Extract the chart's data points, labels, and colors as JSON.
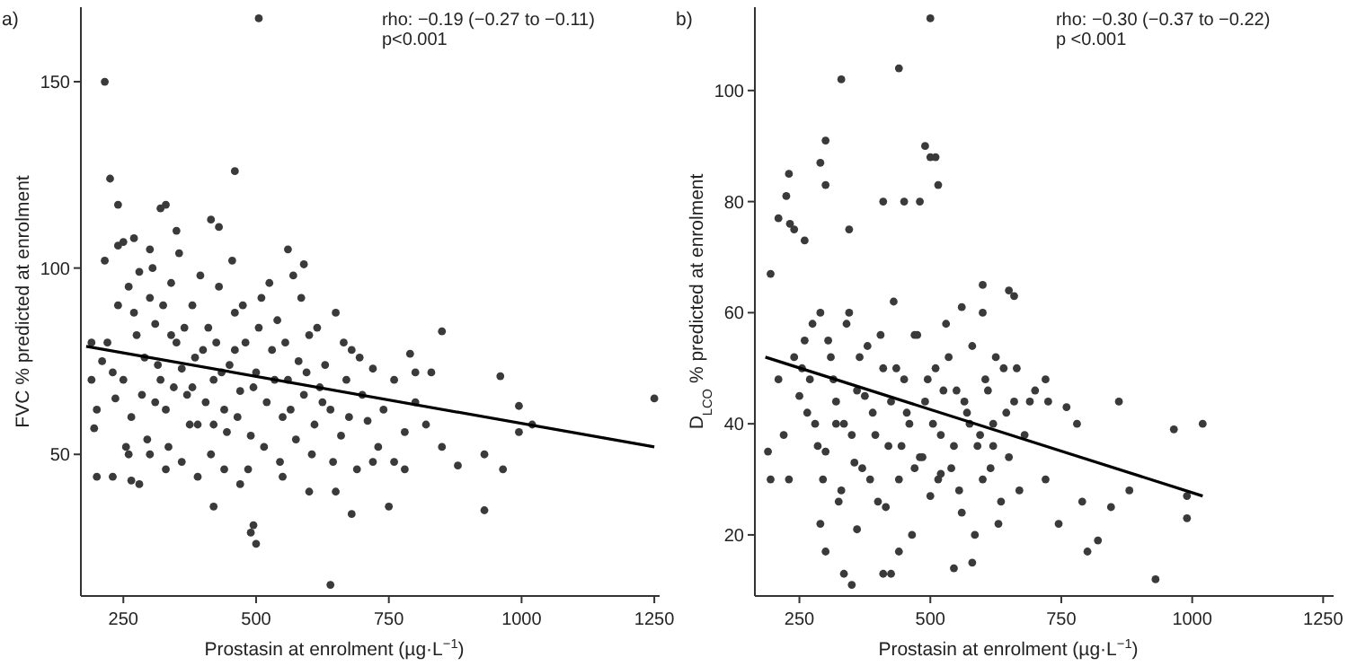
{
  "chart_data": [
    {
      "type": "scatter",
      "xlabel": "Prostasin at enrolment (µg·L$^{−1}$)",
      "ylabel": "FVC % predicted at enrolment",
      "annotations": [
        "a)",
        "rho: −0.19 (−0.27 to −0.11)",
        "p<0.001"
      ],
      "xlim": [
        170,
        1260
      ],
      "ylim": [
        12,
        170
      ],
      "xticks": [
        250,
        500,
        750,
        1000,
        1250
      ],
      "yticks": [
        50,
        100,
        150
      ],
      "grid": false,
      "marker": "circle",
      "series": [
        {
          "color": "#3a3a3a",
          "x": [
            505,
            215,
            225,
            460,
            240,
            330,
            320,
            415,
            430,
            215,
            240,
            250,
            190,
            195,
            200,
            230,
            265,
            280,
            1250,
            930,
            965,
            930,
            880,
            850,
            1020,
            995,
            995,
            960,
            850,
            800,
            790,
            830,
            640,
            500,
            490,
            495,
            420,
            600,
            650,
            680,
            750,
            690,
            720,
            760,
            780,
            260,
            270,
            280,
            290,
            300,
            310,
            320,
            330,
            340,
            350,
            360,
            370,
            380,
            390,
            400,
            410,
            420,
            430,
            440,
            450,
            460,
            470,
            480,
            490,
            500,
            510,
            520,
            530,
            540,
            550,
            560,
            570,
            580,
            590,
            600,
            610,
            620,
            630,
            640,
            650,
            660,
            670,
            680,
            700,
            710,
            720,
            740,
            760,
            780,
            800,
            820,
            250,
            265,
            275,
            285,
            295,
            305,
            315,
            325,
            335,
            345,
            355,
            365,
            375,
            385,
            395,
            405,
            415,
            425,
            435,
            445,
            455,
            465,
            475,
            485,
            495,
            505,
            515,
            525,
            535,
            545,
            555,
            565,
            575,
            585,
            595,
            605,
            615,
            625,
            645,
            665,
            675,
            695,
            730,
            590,
            560,
            350,
            270,
            300,
            220,
            230,
            240,
            235,
            210,
            200,
            190,
            360,
            440,
            470,
            550,
            330,
            300,
            390,
            260,
            255,
            420,
            460,
            380,
            340,
            310
          ],
          "values": [
            167,
            150,
            124,
            126,
            117,
            117,
            116,
            113,
            111,
            102,
            106,
            107,
            80,
            57,
            44,
            44,
            43,
            42,
            65,
            50,
            46,
            35,
            47,
            52,
            58,
            56,
            63,
            71,
            83,
            72,
            77,
            72,
            15,
            26,
            29,
            31,
            36,
            40,
            40,
            34,
            36,
            46,
            48,
            48,
            46,
            95,
            88,
            99,
            76,
            92,
            85,
            70,
            62,
            96,
            80,
            73,
            66,
            90,
            58,
            78,
            84,
            70,
            95,
            62,
            74,
            88,
            67,
            80,
            55,
            72,
            92,
            64,
            78,
            86,
            60,
            70,
            98,
            75,
            66,
            82,
            58,
            68,
            74,
            62,
            88,
            55,
            70,
            78,
            66,
            59,
            73,
            62,
            70,
            56,
            64,
            58,
            70,
            60,
            82,
            66,
            54,
            100,
            74,
            90,
            52,
            68,
            104,
            84,
            58,
            76,
            98,
            64,
            50,
            80,
            72,
            56,
            102,
            60,
            90,
            46,
            68,
            84,
            52,
            96,
            70,
            48,
            80,
            62,
            54,
            92,
            72,
            50,
            84,
            64,
            48,
            80,
            60,
            76,
            52,
            101,
            105,
            110,
            108,
            105,
            80,
            72,
            90,
            65,
            75,
            62,
            70,
            48,
            46,
            42,
            44,
            46,
            50,
            44,
            50,
            52,
            58,
            78,
            68,
            82,
            64
          ]
        },
        {
          "type": "line",
          "marker": "none",
          "color": "#000000",
          "x": [
            180,
            1250
          ],
          "values": [
            79,
            52
          ]
        }
      ]
    },
    {
      "type": "scatter",
      "xlabel": "Prostasin at enrolment (µg·L$^{−1}$)",
      "ylabel": "D$_{LCO}$ % predicted at enrolment",
      "annotations": [
        "b)",
        "rho: −0.30 (−0.37 to −0.22)",
        "p <0.001"
      ],
      "xlim": [
        165,
        1270
      ],
      "ylim": [
        9,
        115
      ],
      "xticks": [
        250,
        500,
        750,
        1000,
        1250
      ],
      "yticks": [
        20,
        40,
        60,
        80,
        100
      ],
      "grid": false,
      "marker": "circle",
      "series": [
        {
          "color": "#3a3a3a",
          "x": [
            500,
            440,
            330,
            490,
            300,
            290,
            300,
            500,
            510,
            515,
            450,
            410,
            480,
            230,
            210,
            225,
            232,
            240,
            195,
            260,
            345,
            650,
            600,
            600,
            560,
            660,
            1020,
            965,
            990,
            990,
            930,
            880,
            860,
            845,
            820,
            800,
            790,
            780,
            760,
            745,
            720,
            725,
            720,
            350,
            335,
            410,
            425,
            545,
            580,
            440,
            190,
            195,
            230,
            300,
            290,
            250,
            260,
            270,
            280,
            290,
            300,
            310,
            320,
            330,
            340,
            350,
            360,
            370,
            380,
            390,
            400,
            410,
            420,
            430,
            440,
            450,
            460,
            470,
            480,
            490,
            500,
            510,
            520,
            530,
            540,
            550,
            560,
            570,
            580,
            590,
            600,
            610,
            620,
            630,
            640,
            650,
            660,
            670,
            680,
            700,
            255,
            265,
            275,
            285,
            295,
            305,
            315,
            325,
            335,
            345,
            355,
            365,
            375,
            385,
            395,
            405,
            415,
            425,
            435,
            445,
            455,
            465,
            475,
            485,
            495,
            505,
            515,
            525,
            535,
            545,
            555,
            565,
            575,
            585,
            595,
            605,
            615,
            625,
            635,
            645,
            665,
            690,
            220,
            240,
            210,
            320,
            360,
            470,
            520,
            620
          ],
          "values": [
            113,
            104,
            102,
            90,
            91,
            87,
            83,
            88,
            88,
            83,
            80,
            80,
            80,
            85,
            77,
            81,
            76,
            75,
            67,
            73,
            75,
            64,
            65,
            60,
            61,
            63,
            40,
            39,
            27,
            23,
            12,
            28,
            44,
            25,
            19,
            17,
            26,
            40,
            43,
            22,
            30,
            44,
            48,
            11,
            13,
            13,
            13,
            14,
            15,
            17,
            35,
            30,
            30,
            17,
            22,
            45,
            55,
            48,
            40,
            60,
            35,
            52,
            44,
            28,
            58,
            38,
            46,
            32,
            54,
            42,
            26,
            50,
            36,
            62,
            30,
            48,
            40,
            56,
            34,
            44,
            27,
            50,
            38,
            58,
            32,
            46,
            24,
            42,
            54,
            36,
            30,
            46,
            40,
            22,
            50,
            34,
            44,
            28,
            38,
            46,
            50,
            42,
            58,
            36,
            30,
            55,
            48,
            26,
            40,
            60,
            33,
            52,
            45,
            30,
            38,
            56,
            25,
            44,
            50,
            36,
            42,
            20,
            56,
            34,
            48,
            40,
            30,
            46,
            52,
            36,
            28,
            44,
            40,
            20,
            38,
            48,
            32,
            52,
            26,
            42,
            50,
            44,
            38,
            52,
            48,
            40,
            21,
            32,
            31,
            36
          ]
        },
        {
          "type": "line",
          "marker": "none",
          "color": "#000000",
          "x": [
            185,
            1020
          ],
          "values": [
            52,
            27
          ]
        }
      ]
    }
  ]
}
